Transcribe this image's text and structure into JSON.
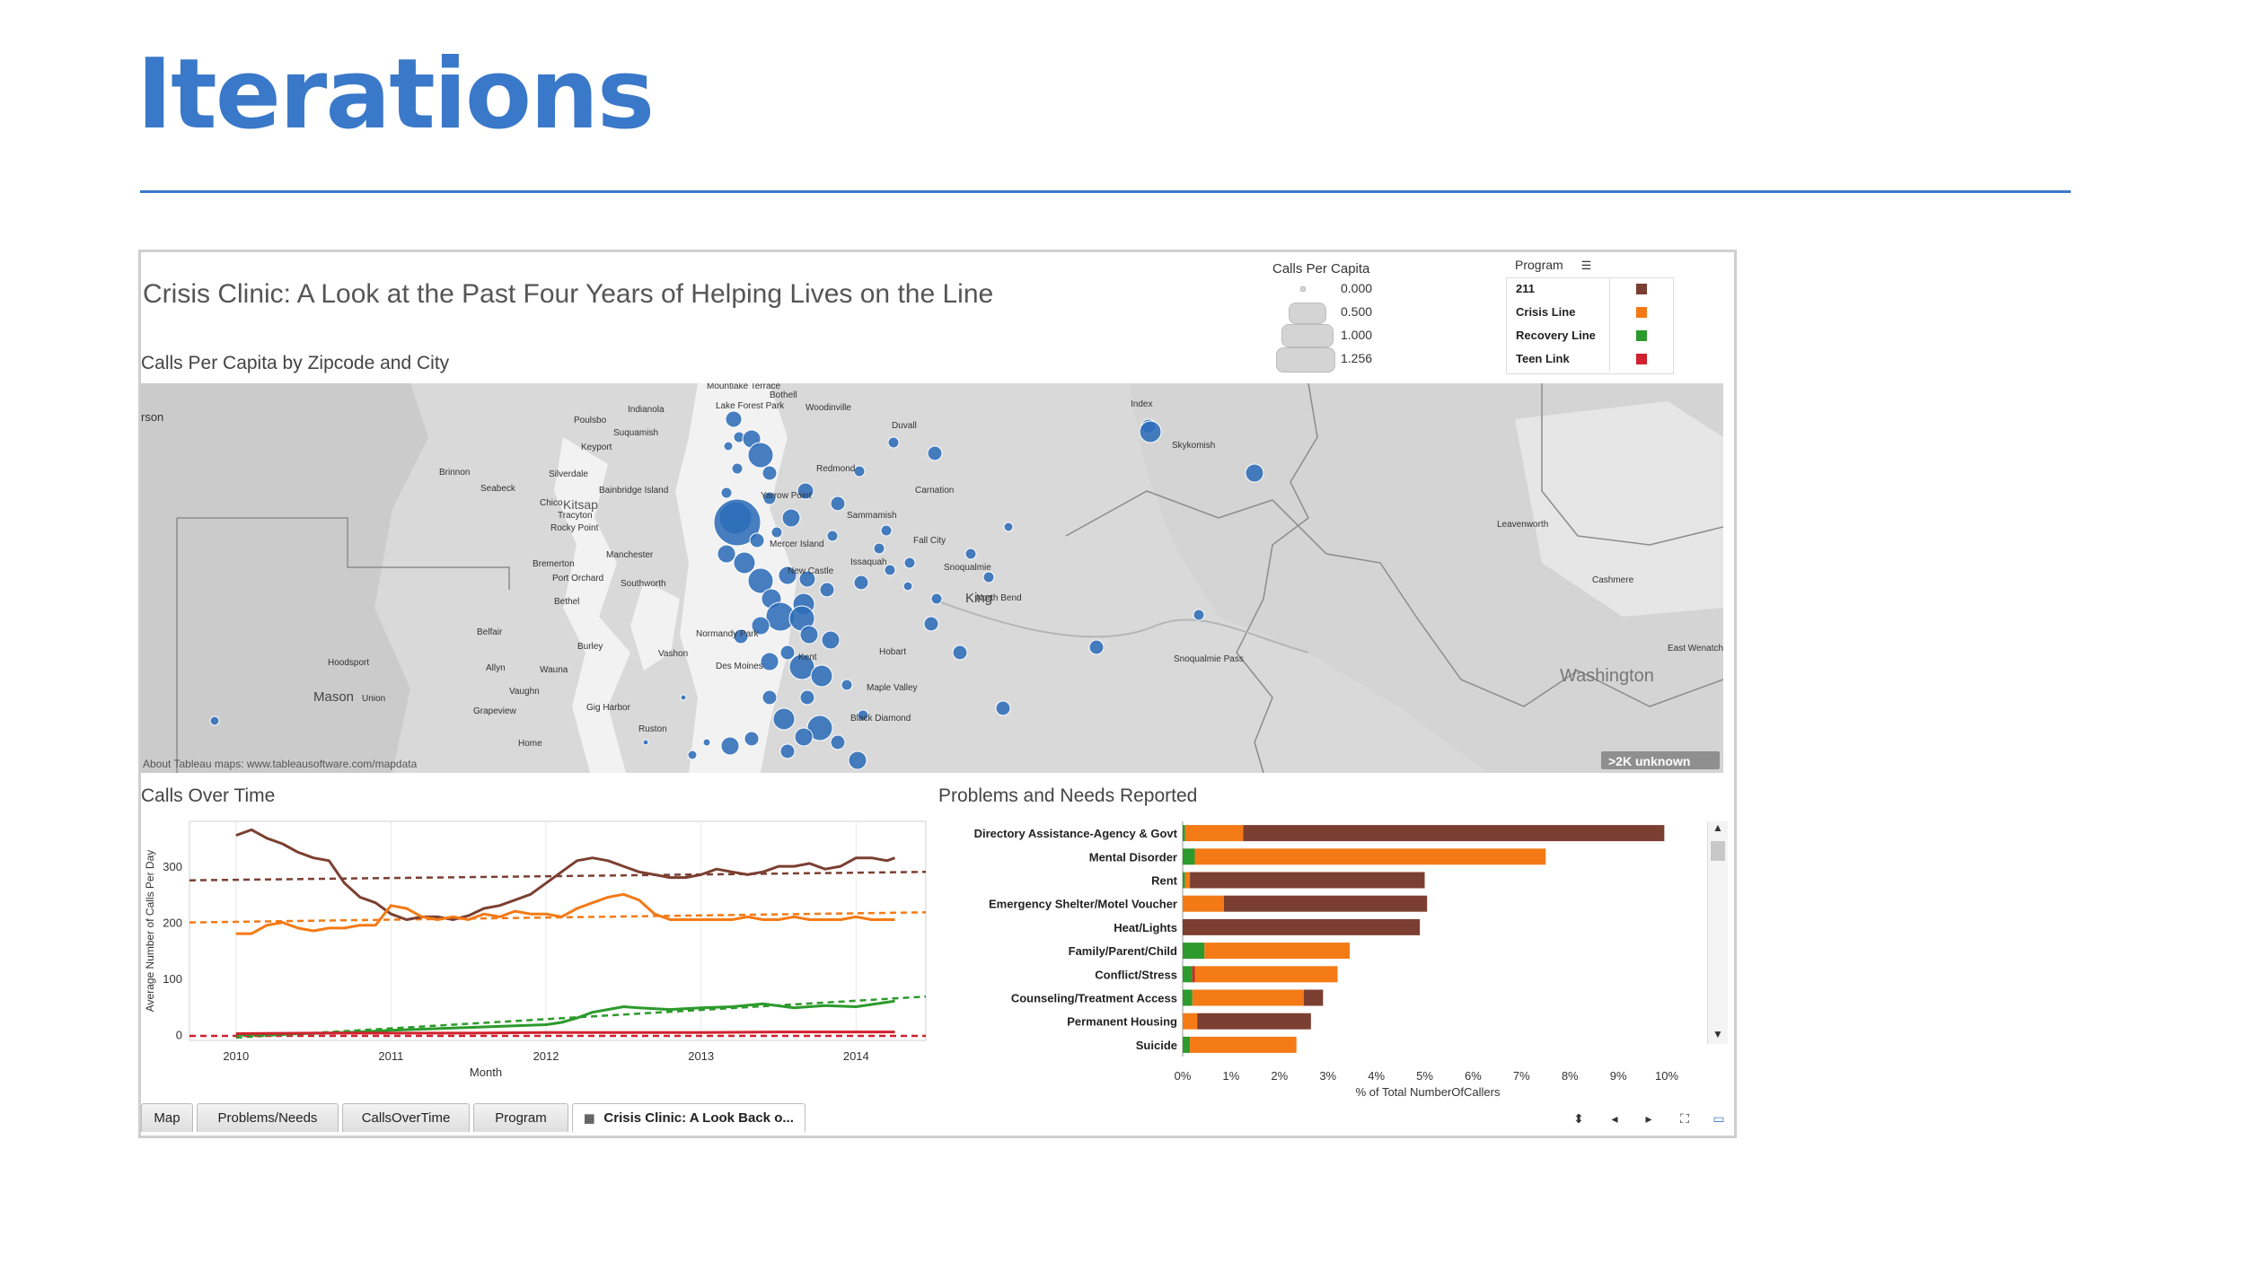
{
  "slide": {
    "title": "Iterations"
  },
  "dashboard": {
    "title": "Crisis Clinic: A Look at the Past Four Years of Helping Lives on the Line",
    "map_title": "Calls Per Capita by Zipcode and City",
    "line_title": "Calls Over Time",
    "bar_title": "Problems and Needs Reported",
    "map_credit": "About Tableau maps: www.tableausoftware.com/mapdata",
    "map_badge": ">2K unknown",
    "map_labels": {
      "mountlake_terrace": "Mountlake Terrace",
      "bothell": "Bothell",
      "lake_forest_park": "Lake Forest Park",
      "woodinville": "Woodinville",
      "indianola": "Indianola",
      "poulsbo": "Poulsbo",
      "suquamish": "Suquamish",
      "keyport": "Keyport",
      "brinnon": "Brinnon",
      "seabeck": "Seabeck",
      "silverdale": "Silverdale",
      "bainbridge": "Bainbridge Island",
      "chico": "Chico",
      "kitsap": "Kitsap",
      "rocky_point": "Rocky Point",
      "tracyton": "Tracyton",
      "manchester": "Manchester",
      "bremerton": "Bremerton",
      "port_orchard": "Port Orchard",
      "southworth": "Southworth",
      "bethel": "Bethel",
      "belfair": "Belfair",
      "burley": "Burley",
      "vashon": "Vashon",
      "hoodsport": "Hoodsport",
      "allyn": "Allyn",
      "wauna": "Wauna",
      "mason": "Mason",
      "union": "Union",
      "vaughn": "Vaughn",
      "grapeview": "Grapeview",
      "gig_harbor": "Gig Harbor",
      "ruston": "Ruston",
      "home": "Home",
      "redmond": "Redmond",
      "duvall": "Duvall",
      "carnation": "Carnation",
      "sammamish": "Sammamish",
      "issaquah": "Issaquah",
      "fall_city": "Fall City",
      "snoqualmie": "Snoqualmie",
      "king": "King",
      "north_bend": "North Bend",
      "normandy": "Normandy Park",
      "des_moines": "Des Moines",
      "kent": "Kent",
      "hobart": "Hobart",
      "maple_valley": "Maple Valley",
      "black_diamond": "Black Diamond",
      "snoqualmie_pass": "Snoqualmie Pass",
      "skykomish": "Skykomish",
      "index": "Index",
      "leavenworth": "Leavenworth",
      "cashmere": "Cashmere",
      "washington": "Washington",
      "east_wenatchee": "East Wenatchee",
      "orson": "rson",
      "newcastle": "New Castle",
      "mercer": "Mercer Island",
      "yarrow": "Yarrow Point"
    }
  },
  "size_legend": {
    "title": "Calls Per Capita",
    "items": [
      {
        "label": "0.000",
        "size": 0.0
      },
      {
        "label": "0.500",
        "size": 0.5
      },
      {
        "label": "1.000",
        "size": 1.0
      },
      {
        "label": "1.256",
        "size": 1.256
      }
    ]
  },
  "program_legend": {
    "title": "Program",
    "items": [
      {
        "label": "211",
        "color": "#7b3f31"
      },
      {
        "label": "Crisis Line",
        "color": "#f47a16"
      },
      {
        "label": "Recovery Line",
        "color": "#2c9a2c"
      },
      {
        "label": "Teen Link",
        "color": "#d0212f"
      }
    ]
  },
  "colors": {
    "accent": "#3a78c9",
    "map_dot": "#2e6db8"
  },
  "chart_data": [
    {
      "type": "line",
      "title": "Calls Over Time",
      "xlabel": "Month",
      "ylabel": "Average Number of Calls Per Day",
      "x_ticks": [
        "2010",
        "2011",
        "2012",
        "2013",
        "2014"
      ],
      "y_ticks": [
        "0",
        "100",
        "200",
        "300"
      ],
      "xlim": [
        2009.7,
        2014.45
      ],
      "ylim": [
        -10,
        380
      ],
      "series": [
        {
          "name": "211",
          "color": "#7b3f31",
          "x": [
            2010.0,
            2010.1,
            2010.2,
            2010.3,
            2010.4,
            2010.5,
            2010.6,
            2010.7,
            2010.8,
            2010.9,
            2011.0,
            2011.1,
            2011.2,
            2011.3,
            2011.4,
            2011.5,
            2011.6,
            2011.7,
            2011.8,
            2011.9,
            2012.0,
            2012.1,
            2012.2,
            2012.3,
            2012.4,
            2012.5,
            2012.6,
            2012.7,
            2012.8,
            2012.9,
            2013.0,
            2013.1,
            2013.2,
            2013.3,
            2013.4,
            2013.5,
            2013.6,
            2013.7,
            2013.8,
            2013.9,
            2014.0,
            2014.1,
            2014.2,
            2014.25
          ],
          "values": [
            355,
            365,
            350,
            340,
            325,
            315,
            310,
            270,
            245,
            235,
            215,
            205,
            210,
            210,
            205,
            212,
            225,
            230,
            240,
            250,
            270,
            290,
            310,
            315,
            310,
            300,
            290,
            285,
            280,
            280,
            285,
            295,
            290,
            285,
            290,
            300,
            300,
            305,
            295,
            300,
            315,
            315,
            310,
            315
          ]
        },
        {
          "name": "Crisis Line",
          "color": "#f47a16",
          "x": [
            2010.0,
            2010.1,
            2010.2,
            2010.3,
            2010.4,
            2010.5,
            2010.6,
            2010.7,
            2010.8,
            2010.9,
            2011.0,
            2011.1,
            2011.2,
            2011.3,
            2011.4,
            2011.5,
            2011.6,
            2011.7,
            2011.8,
            2011.9,
            2012.0,
            2012.1,
            2012.2,
            2012.3,
            2012.4,
            2012.5,
            2012.6,
            2012.7,
            2012.8,
            2012.9,
            2013.0,
            2013.1,
            2013.2,
            2013.3,
            2013.4,
            2013.5,
            2013.6,
            2013.7,
            2013.8,
            2013.9,
            2014.0,
            2014.1,
            2014.2,
            2014.25
          ],
          "values": [
            180,
            180,
            195,
            200,
            190,
            185,
            190,
            190,
            195,
            195,
            230,
            225,
            210,
            205,
            210,
            205,
            215,
            210,
            220,
            215,
            215,
            210,
            225,
            235,
            245,
            250,
            240,
            215,
            205,
            205,
            205,
            205,
            205,
            210,
            205,
            205,
            210,
            205,
            205,
            205,
            210,
            205,
            205,
            205
          ]
        },
        {
          "name": "Recovery Line",
          "color": "#2c9a2c",
          "x": [
            2010.0,
            2010.2,
            2010.4,
            2010.6,
            2010.8,
            2011.0,
            2011.2,
            2011.4,
            2011.6,
            2011.8,
            2012.0,
            2012.1,
            2012.2,
            2012.3,
            2012.4,
            2012.5,
            2012.6,
            2012.8,
            2013.0,
            2013.2,
            2013.4,
            2013.6,
            2013.8,
            2014.0,
            2014.2,
            2014.25
          ],
          "values": [
            0,
            0,
            2,
            3,
            5,
            8,
            10,
            12,
            14,
            16,
            18,
            22,
            30,
            40,
            45,
            50,
            48,
            45,
            48,
            50,
            55,
            48,
            52,
            50,
            58,
            60
          ]
        },
        {
          "name": "Teen Link",
          "color": "#d0212f",
          "x": [
            2010.0,
            2010.5,
            2011.0,
            2011.5,
            2012.0,
            2012.5,
            2013.0,
            2013.5,
            2014.0,
            2014.25
          ],
          "values": [
            2,
            3,
            3,
            3,
            4,
            4,
            4,
            5,
            5,
            5
          ]
        }
      ],
      "trend_lines": [
        {
          "name": "211",
          "color": "#7b3f31",
          "x": [
            2009.7,
            2014.45
          ],
          "values": [
            275,
            290
          ]
        },
        {
          "name": "Crisis Line",
          "color": "#f47a16",
          "x": [
            2009.7,
            2014.45
          ],
          "values": [
            200,
            218
          ]
        },
        {
          "name": "Recovery Line",
          "color": "#2c9a2c",
          "x": [
            2010.0,
            2014.45
          ],
          "values": [
            -5,
            68
          ]
        },
        {
          "name": "Teen Link",
          "color": "#d0212f",
          "x": [
            2009.7,
            2014.45
          ],
          "values": [
            -2,
            -2
          ]
        }
      ]
    },
    {
      "type": "bar",
      "title": "Problems and Needs Reported",
      "xlabel": "% of Total NumberOfCallers",
      "x_ticks": [
        "0%",
        "1%",
        "2%",
        "3%",
        "4%",
        "5%",
        "6%",
        "7%",
        "8%",
        "9%",
        "10%"
      ],
      "xlim": [
        0,
        10.5
      ],
      "stacked": true,
      "categories": [
        "Directory Assistance-Agency & Govt",
        "Mental Disorder",
        "Rent",
        "Emergency Shelter/Motel Voucher",
        "Heat/Lights",
        "Family/Parent/Child",
        "Conflict/Stress",
        "Counseling/Treatment Access",
        "Permanent Housing",
        "Suicide"
      ],
      "series": [
        {
          "name": "Recovery Line",
          "color": "#2c9a2c",
          "values": [
            0.05,
            0.25,
            0.05,
            0.0,
            0.0,
            0.45,
            0.2,
            0.2,
            0.0,
            0.15
          ]
        },
        {
          "name": "Teen Link",
          "color": "#d0212f",
          "values": [
            0.0,
            0.0,
            0.0,
            0.0,
            0.0,
            0.0,
            0.05,
            0.0,
            0.0,
            0.0
          ]
        },
        {
          "name": "Crisis Line",
          "color": "#f47a16",
          "values": [
            1.2,
            7.25,
            0.1,
            0.85,
            0.0,
            3.0,
            2.95,
            2.3,
            0.3,
            2.2
          ]
        },
        {
          "name": "211",
          "color": "#7b3f31",
          "values": [
            8.7,
            0.0,
            4.85,
            4.2,
            4.9,
            0.0,
            0.0,
            0.4,
            2.35,
            0.0
          ]
        }
      ]
    }
  ],
  "tabs": [
    {
      "label": "Map"
    },
    {
      "label": "Problems/Needs"
    },
    {
      "label": "CallsOverTime"
    },
    {
      "label": "Program"
    },
    {
      "label": "Crisis Clinic: A Look Back o..."
    }
  ],
  "controls": {
    "sort": "⬍",
    "prev": "◂",
    "next": "▸",
    "fullscreen": "⛶",
    "present": "▭"
  }
}
